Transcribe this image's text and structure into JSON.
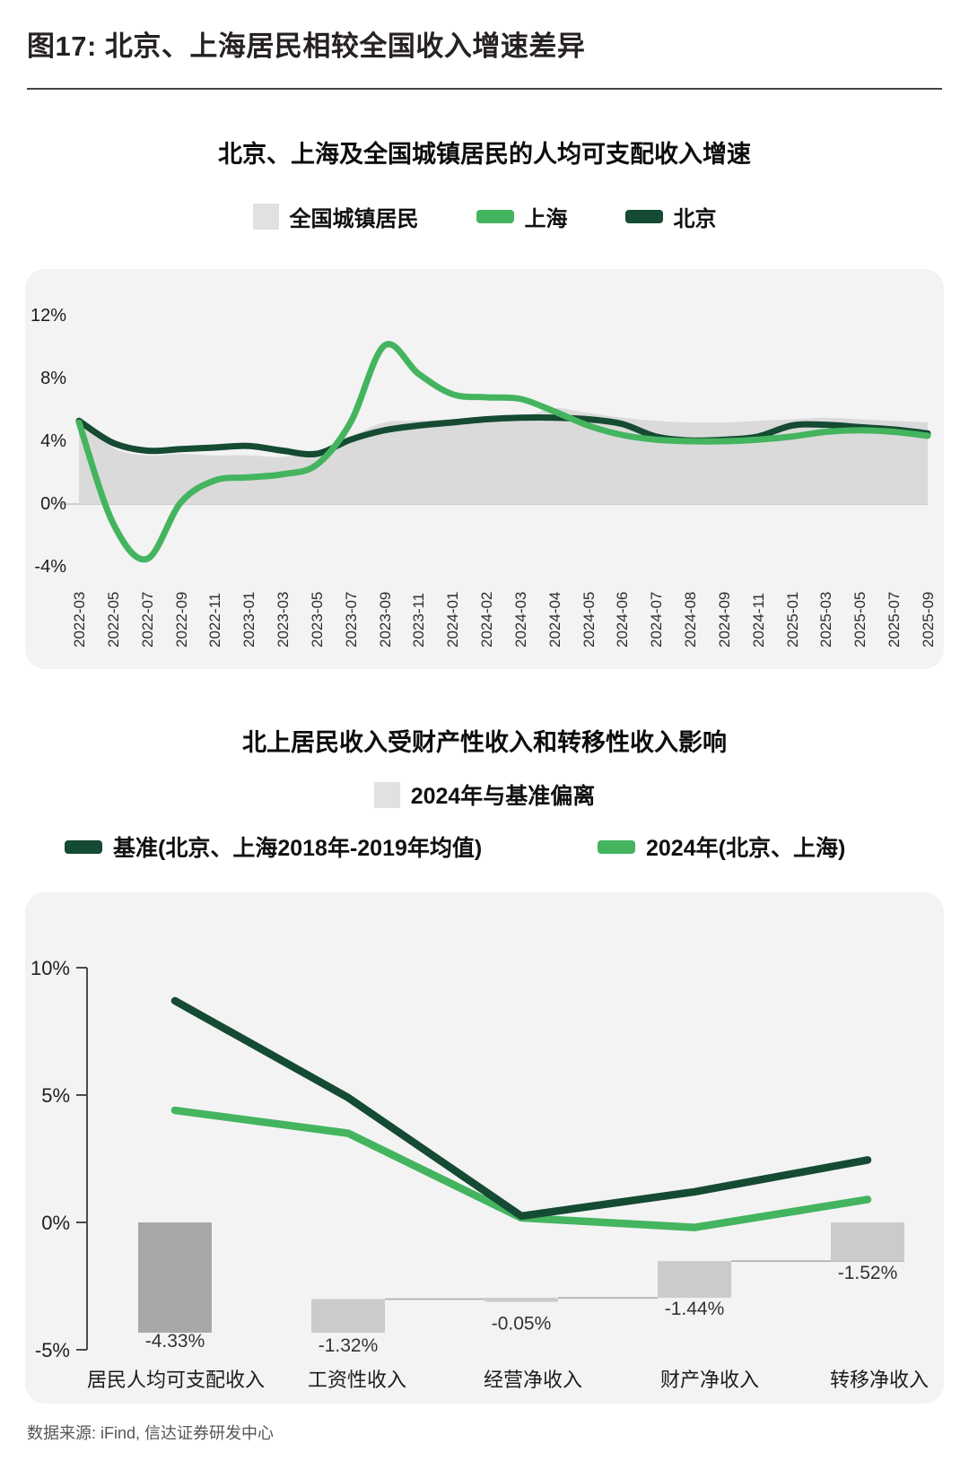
{
  "header": {
    "title": "图17: 北京、上海居民相较全国收入增速差异"
  },
  "footer": {
    "source": "数据来源: iFind, 信达证券研发中心"
  },
  "colors": {
    "shanghai": "#44b45f",
    "beijing": "#154a33",
    "national_area": "#dadada",
    "legend_gray": "#e1e1e1",
    "deviation_bar": "#cbcbcb",
    "total_bar": "#a8a8a8",
    "zero_line": "#cfcfcf",
    "axis": "#4a4a4a",
    "connector": "#a9a9a9",
    "card_bg": "#f3f3f3"
  },
  "chart_data": [
    {
      "type": "area",
      "title": "北京、上海及全国城镇居民的人均可支配收入增速",
      "x": [
        "2022-03",
        "2022-05",
        "2022-07",
        "2022-09",
        "2022-11",
        "2023-01",
        "2023-03",
        "2023-05",
        "2023-07",
        "2023-09",
        "2023-11",
        "2024-01",
        "2024-02",
        "2024-03",
        "2024-04",
        "2024-05",
        "2024-06",
        "2024-07",
        "2024-08",
        "2024-09",
        "2024-11",
        "2025-01",
        "2025-03",
        "2025-05",
        "2025-07",
        "2025-09"
      ],
      "yticks": [
        12,
        8,
        4,
        0,
        -4
      ],
      "ylim": [
        -6,
        13
      ],
      "unit": "%",
      "grid": "zero-line-only",
      "legend_position": "top",
      "series": [
        {
          "name": "全国城镇居民",
          "style": "area",
          "color_key": "national_area",
          "values": [
            5.6,
            3.6,
            3.1,
            3.2,
            3.1,
            3.1,
            3.0,
            3.4,
            4.3,
            5.2,
            5.3,
            5.4,
            5.4,
            5.5,
            6.1,
            5.8,
            5.5,
            5.3,
            5.2,
            5.2,
            5.3,
            5.4,
            5.5,
            5.4,
            5.3,
            5.2
          ]
        },
        {
          "name": "上海",
          "style": "line",
          "color_key": "shanghai",
          "values": [
            5.2,
            -1.2,
            -3.5,
            0.1,
            1.5,
            1.7,
            1.9,
            2.5,
            5.2,
            10.1,
            8.3,
            7.0,
            6.8,
            6.7,
            5.9,
            5.0,
            4.4,
            4.1,
            4.0,
            4.0,
            4.1,
            4.3,
            4.6,
            4.7,
            4.6,
            4.35
          ]
        },
        {
          "name": "北京",
          "style": "line",
          "color_key": "beijing",
          "values": [
            5.3,
            3.9,
            3.4,
            3.5,
            3.6,
            3.7,
            3.4,
            3.2,
            4.1,
            4.7,
            5.0,
            5.2,
            5.4,
            5.5,
            5.5,
            5.4,
            5.1,
            4.3,
            4.05,
            4.1,
            4.3,
            5.0,
            5.05,
            4.9,
            4.75,
            4.5
          ]
        }
      ]
    },
    {
      "type": "waterfall+line",
      "title": "北上居民收入受财产性收入和转移性收入影响",
      "categories": [
        "居民人均可支配收入",
        "工资性收入",
        "经营净收入",
        "财产净收入",
        "转移净收入"
      ],
      "yticks": [
        10,
        5,
        0,
        -5
      ],
      "ylim": [
        -5,
        10
      ],
      "unit": "%",
      "bars": {
        "name": "2024年与基准偏离",
        "values": [
          -4.33,
          -1.32,
          -0.05,
          -1.44,
          -1.52
        ],
        "labels": [
          "-4.33%",
          "-1.32%",
          "-0.05%",
          "-1.44%",
          "-1.52%"
        ]
      },
      "series": [
        {
          "name": "基准(北京、上海2018年-2019年均值)",
          "color_key": "beijing",
          "values": [
            8.7,
            4.9,
            0.25,
            1.2,
            2.45
          ]
        },
        {
          "name": "2024年(北京、上海)",
          "color_key": "shanghai",
          "values": [
            4.4,
            3.5,
            0.18,
            -0.2,
            0.9
          ]
        }
      ]
    }
  ]
}
